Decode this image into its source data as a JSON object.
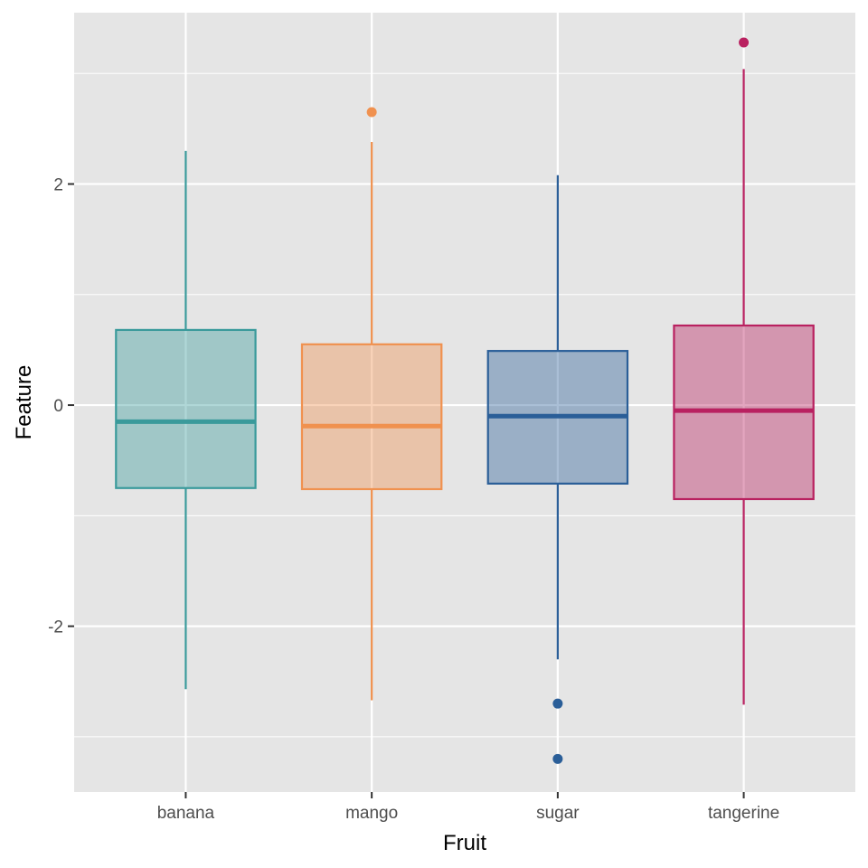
{
  "chart_data": {
    "type": "boxplot",
    "title": "",
    "xlabel": "Fruit",
    "ylabel": "Feature",
    "ylim": [
      -3.5,
      3.55
    ],
    "yticks": [
      -2,
      0,
      2
    ],
    "ytick_labels": [
      "-2",
      "0",
      "2"
    ],
    "grid": true,
    "legend": "none",
    "background": "#e5e5e5",
    "gridline_color": "#ffffff",
    "categories": [
      "banana",
      "mango",
      "sugar",
      "tangerine"
    ],
    "colors": [
      "#3a9a9b",
      "#f0914f",
      "#2a5e98",
      "#b92160"
    ],
    "boxes": [
      {
        "category": "banana",
        "whisker_low": -2.57,
        "q1": -0.75,
        "median": -0.15,
        "q3": 0.68,
        "whisker_high": 2.3,
        "outliers": []
      },
      {
        "category": "mango",
        "whisker_low": -2.67,
        "q1": -0.76,
        "median": -0.19,
        "q3": 0.55,
        "whisker_high": 2.38,
        "outliers": [
          2.65
        ]
      },
      {
        "category": "sugar",
        "whisker_low": -2.3,
        "q1": -0.71,
        "median": -0.1,
        "q3": 0.49,
        "whisker_high": 2.08,
        "outliers": [
          -2.7,
          -3.2
        ]
      },
      {
        "category": "tangerine",
        "whisker_low": -2.71,
        "q1": -0.85,
        "median": -0.05,
        "q3": 0.72,
        "whisker_high": 3.04,
        "outliers": [
          3.28
        ]
      }
    ]
  }
}
